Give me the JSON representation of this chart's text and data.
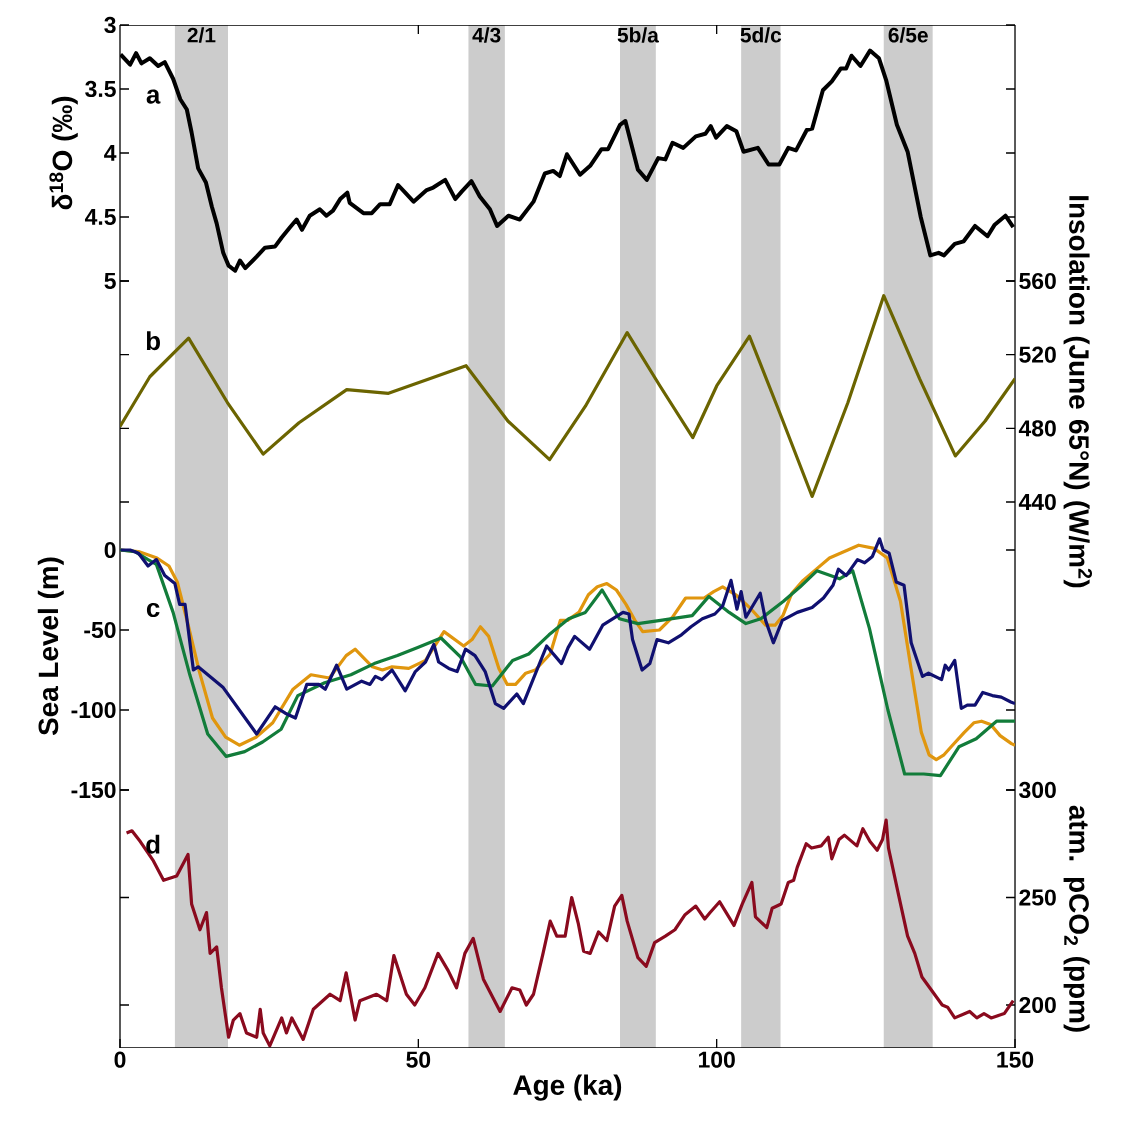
{
  "chart_data": [
    {
      "type": "line",
      "ylabel": "δ$^{18}$O (‰)",
      "xlim": [
        0,
        150
      ],
      "xticks": [
        {
          "value": 50,
          "label": null
        },
        {
          "value": 100,
          "label": null
        }
      ],
      "ylim": [
        5,
        3
      ],
      "yticks": [
        3,
        3.5,
        4,
        4.5,
        5
      ],
      "tick_labels": "y",
      "annotations": [
        "a"
      ],
      "bands": [
        {
          "axis": "x",
          "from": 9.2,
          "to": 18.1,
          "label": "2/1",
          "color": "#cccccc"
        },
        {
          "axis": "x",
          "from": 58.4,
          "to": 64.5,
          "label": "4/3",
          "color": "#cccccc"
        },
        {
          "axis": "x",
          "from": 83.8,
          "to": 89.8,
          "label": "5b/a",
          "color": "#cccccc"
        },
        {
          "axis": "x",
          "from": 104.1,
          "to": 110.7,
          "label": "5d/c",
          "color": "#cccccc"
        },
        {
          "axis": "x",
          "from": 128.0,
          "to": 136.2,
          "label": "6/5e",
          "color": "#cccccc"
        }
      ],
      "series": [
        {
          "color": "#000000",
          "x": [
            0.1,
            1.7,
            2.7,
            3.6,
            5.0,
            6.4,
            7.5,
            8.9,
            10.1,
            11.2,
            12.0,
            13.1,
            14.4,
            15.4,
            16.2,
            17.3,
            18.2,
            19.3,
            20.1,
            21.0,
            22.9,
            24.3,
            26.0,
            27.1,
            28.5,
            29.6,
            30.5,
            31.8,
            33.5,
            34.6,
            35.7,
            36.9,
            38.1,
            38.5,
            40.8,
            42.2,
            43.6,
            45.2,
            46.6,
            47.8,
            49.2,
            51.4,
            52.5,
            54.5,
            56.2,
            57.3,
            58.9,
            60.3,
            62.0,
            63.2,
            65.1,
            67.0,
            69.3,
            71.2,
            72.6,
            73.7,
            74.9,
            77.1,
            78.8,
            80.7,
            81.8,
            83.8,
            84.7,
            86.8,
            88.3,
            90.2,
            91.4,
            92.6,
            94.4,
            96.5,
            98.1,
            99.0,
            99.9,
            101.7,
            103.3,
            104.5,
            106.9,
            108.7,
            110.5,
            112.0,
            113.3,
            115.1,
            116.0,
            117.8,
            119.3,
            120.8,
            121.7,
            122.6,
            124.1,
            125.7,
            127.2,
            128.4,
            130.2,
            132.0,
            134.2,
            135.8,
            137.2,
            138.1,
            139.9,
            141.4,
            143.3,
            145.4,
            146.6,
            148.4,
            149.7
          ],
          "values": [
            3.23,
            3.31,
            3.22,
            3.3,
            3.26,
            3.32,
            3.29,
            3.42,
            3.58,
            3.66,
            3.84,
            4.12,
            4.23,
            4.42,
            4.55,
            4.78,
            4.88,
            4.92,
            4.84,
            4.9,
            4.81,
            4.74,
            4.73,
            4.66,
            4.58,
            4.52,
            4.6,
            4.49,
            4.44,
            4.49,
            4.45,
            4.36,
            4.31,
            4.39,
            4.47,
            4.47,
            4.4,
            4.4,
            4.25,
            4.31,
            4.38,
            4.29,
            4.27,
            4.21,
            4.36,
            4.3,
            4.22,
            4.34,
            4.44,
            4.57,
            4.49,
            4.52,
            4.38,
            4.16,
            4.14,
            4.18,
            4.01,
            4.17,
            4.1,
            3.97,
            3.97,
            3.78,
            3.75,
            4.13,
            4.21,
            4.04,
            4.05,
            3.92,
            3.96,
            3.87,
            3.85,
            3.79,
            3.88,
            3.79,
            3.83,
            3.99,
            3.96,
            4.09,
            4.09,
            3.96,
            3.98,
            3.82,
            3.81,
            3.51,
            3.44,
            3.34,
            3.34,
            3.24,
            3.32,
            3.2,
            3.26,
            3.43,
            3.78,
            3.99,
            4.5,
            4.8,
            4.78,
            4.8,
            4.71,
            4.69,
            4.57,
            4.65,
            4.56,
            4.49,
            4.58
          ]
        }
      ]
    },
    {
      "type": "line",
      "y2label": "Insolation (June 65°N) (W/m$^{2}$)",
      "xlim": [
        0,
        150
      ],
      "y2lim": [
        440,
        560
      ],
      "y2ticks": [
        440,
        480,
        520,
        560
      ],
      "tick_labels": "y",
      "annotations": [
        "b"
      ],
      "bands": [
        {
          "axis": "x",
          "from": 9.2,
          "to": 18.1,
          "color": "#cccccc"
        },
        {
          "axis": "x",
          "from": 58.4,
          "to": 64.5,
          "color": "#cccccc"
        },
        {
          "axis": "x",
          "from": 83.8,
          "to": 89.8,
          "color": "#cccccc"
        },
        {
          "axis": "x",
          "from": 104.1,
          "to": 110.7,
          "color": "#cccccc"
        },
        {
          "axis": "x",
          "from": 128.0,
          "to": 136.2,
          "color": "#cccccc"
        }
      ],
      "series": [
        {
          "color": "#6b6400",
          "axis": "y2",
          "x": [
            0,
            5,
            11.5,
            18,
            24,
            30,
            38,
            45,
            52,
            58,
            65,
            72,
            78,
            85,
            90.5,
            96,
            100,
            105.5,
            110.5,
            116,
            122,
            128,
            134,
            140,
            145,
            150
          ],
          "values": [
            481,
            508,
            529,
            494,
            466,
            483,
            501,
            499,
            507,
            514,
            484,
            463,
            492,
            532,
            503,
            475,
            503,
            530,
            489,
            443,
            494,
            552,
            507,
            465,
            484,
            507
          ]
        }
      ]
    },
    {
      "type": "line",
      "ylabel": "Sea Level (m)",
      "xlim": [
        0,
        150
      ],
      "ylim": [
        -150,
        30
      ],
      "yticks": [
        -150,
        -100,
        -50,
        0
      ],
      "tick_labels": "y",
      "annotations": [
        "c"
      ],
      "bands": [
        {
          "axis": "x",
          "from": 9.2,
          "to": 18.1,
          "color": "#cccccc"
        },
        {
          "axis": "x",
          "from": 58.4,
          "to": 64.5,
          "color": "#cccccc"
        },
        {
          "axis": "x",
          "from": 83.8,
          "to": 89.8,
          "color": "#cccccc"
        },
        {
          "axis": "x",
          "from": 104.1,
          "to": 110.7,
          "color": "#cccccc"
        },
        {
          "axis": "x",
          "from": 128.0,
          "to": 136.2,
          "color": "#cccccc"
        }
      ],
      "series": [
        {
          "color": "#e0960e",
          "x": [
            0,
            3.1,
            6.2,
            8.2,
            9.6,
            11.3,
            13.3,
            15.5,
            17.7,
            20.0,
            22.8,
            25.6,
            29.0,
            32.0,
            35.1,
            37.9,
            39.4,
            42.3,
            44.0,
            45.6,
            48.4,
            51.2,
            54.3,
            57.6,
            59.0,
            60.4,
            61.8,
            63.5,
            64.9,
            66.3,
            68.0,
            69.6,
            72.1,
            73.8,
            75.0,
            76.9,
            78.5,
            80.0,
            81.6,
            83.2,
            84.8,
            86.3,
            87.6,
            90.4,
            92.6,
            94.8,
            96.0,
            97.9,
            99.5,
            101.0,
            103.2,
            105.8,
            108.2,
            109.8,
            111.1,
            112.6,
            114.5,
            117.0,
            118.9,
            121.4,
            123.8,
            126.4,
            128.6,
            130.8,
            132.4,
            134.3,
            135.6,
            136.8,
            138.1,
            139.3,
            141.5,
            143.1,
            144.4,
            145.9,
            147.5,
            149.4,
            150
          ],
          "values": [
            0,
            -1,
            -5,
            -10,
            -20,
            -45,
            -76,
            -105,
            -117,
            -122,
            -117,
            -108,
            -87,
            -78,
            -80,
            -66,
            -62,
            -73,
            -75,
            -73,
            -74,
            -69,
            -51,
            -60,
            -56,
            -48,
            -54,
            -74,
            -84,
            -84,
            -77,
            -75,
            -65,
            -44,
            -44,
            -39,
            -28,
            -23,
            -21,
            -25,
            -34,
            -44,
            -51,
            -50,
            -42,
            -30,
            -30,
            -30,
            -26,
            -23,
            -28,
            -37,
            -47,
            -47,
            -41,
            -27,
            -19,
            -11,
            -5,
            -1,
            3,
            1,
            -5,
            -32,
            -70,
            -114,
            -128,
            -131,
            -128,
            -123,
            -114,
            -108,
            -107,
            -109,
            -116,
            -121,
            -122
          ]
        },
        {
          "color": "#127c3a",
          "x": [
            0,
            2.5,
            4.7,
            6.1,
            8.9,
            11.7,
            14.7,
            17.8,
            20.9,
            23.9,
            27.0,
            29.8,
            34.3,
            38.7,
            42.6,
            46.5,
            49.9,
            53.8,
            57.1,
            59.6,
            62.4,
            65.8,
            68.5,
            71.9,
            75.2,
            78.0,
            80.8,
            83.7,
            86.8,
            90.6,
            95.9,
            98.7,
            102.1,
            104.9,
            107.4,
            111.2,
            114.0,
            116.8,
            120.6,
            122.8,
            125.6,
            128.7,
            131.5,
            134.7,
            137.5,
            140.6,
            143.5,
            146.9,
            149.4,
            150
          ],
          "values": [
            0,
            -1,
            -6,
            -9,
            -39,
            -78,
            -115,
            -129,
            -126,
            -120,
            -112,
            -91,
            -83,
            -78,
            -71,
            -66,
            -61,
            -55,
            -67,
            -84,
            -85,
            -69,
            -65,
            -53,
            -43,
            -39,
            -25,
            -43,
            -46,
            -44,
            -41,
            -29,
            -39,
            -46,
            -43,
            -32,
            -23,
            -13,
            -18,
            -13,
            -49,
            -100,
            -140,
            -140,
            -141,
            -123,
            -118,
            -107,
            -107,
            -107
          ]
        },
        {
          "color": "#101070",
          "x": [
            0.1,
            1.7,
            3.1,
            4.7,
            6.1,
            7.5,
            9.2,
            10.0,
            10.9,
            12.3,
            13.1,
            17.3,
            22.9,
            26.0,
            27.7,
            29.4,
            31.3,
            33.3,
            34.4,
            36.3,
            38.0,
            40.5,
            41.9,
            42.8,
            43.9,
            45.6,
            47.8,
            49.5,
            51.2,
            52.6,
            53.4,
            55.1,
            56.5,
            57.9,
            59.5,
            61.2,
            62.9,
            64.3,
            66.5,
            67.6,
            69.0,
            71.5,
            74.0,
            75.1,
            76.2,
            78.7,
            80.9,
            84.3,
            85.3,
            85.9,
            87.5,
            88.8,
            90.0,
            91.9,
            94.1,
            95.7,
            97.6,
            99.7,
            101.0,
            102.4,
            103.4,
            104.1,
            104.9,
            107.3,
            108.2,
            109.5,
            111.0,
            113.5,
            116.0,
            117.9,
            119.5,
            120.4,
            121.7,
            123.6,
            124.8,
            126.1,
            127.3,
            127.9,
            128.9,
            130.1,
            131.4,
            132.6,
            134.5,
            135.5,
            137.7,
            138.3,
            138.9,
            139.9,
            141.0,
            142.0,
            143.3,
            144.6,
            146.2,
            147.7,
            149.3,
            150
          ],
          "values": [
            0,
            0,
            -2,
            -10,
            -6,
            -16,
            -21,
            -34,
            -34,
            -75,
            -73,
            -86,
            -115,
            -98,
            -102,
            -105,
            -84,
            -84,
            -87,
            -72,
            -87,
            -82,
            -84,
            -79,
            -81,
            -75,
            -88,
            -76,
            -70,
            -59,
            -70,
            -74,
            -76,
            -62,
            -66,
            -76,
            -96,
            -99,
            -90,
            -96,
            -83,
            -60,
            -71,
            -61,
            -54,
            -62,
            -47,
            -39,
            -40,
            -56,
            -75,
            -71,
            -56,
            -58,
            -53,
            -48,
            -43,
            -40,
            -35,
            -19,
            -37,
            -26,
            -42,
            -27,
            -44,
            -58,
            -44,
            -39,
            -36,
            -30,
            -22,
            -12,
            -16,
            -6,
            -8,
            -4,
            7,
            0,
            -2,
            -20,
            -22,
            -58,
            -79,
            -77,
            -81,
            -72,
            -75,
            -69,
            -99,
            -97,
            -97,
            -89,
            -91,
            -92,
            -95,
            -96
          ]
        }
      ]
    },
    {
      "type": "line",
      "xlabel": "Age (ka)",
      "y2label": "atm. pCO$_{2}$ (ppm)",
      "xlim": [
        0,
        150
      ],
      "xticks": [
        0,
        50,
        100,
        150
      ],
      "y2lim": [
        180,
        300
      ],
      "y2ticks": [
        200,
        250,
        300
      ],
      "annotations": [
        "d"
      ],
      "bands": [
        {
          "axis": "x",
          "from": 9.2,
          "to": 18.1,
          "color": "#cccccc"
        },
        {
          "axis": "x",
          "from": 58.4,
          "to": 64.5,
          "color": "#cccccc"
        },
        {
          "axis": "x",
          "from": 83.8,
          "to": 89.8,
          "color": "#cccccc"
        },
        {
          "axis": "x",
          "from": 104.1,
          "to": 110.7,
          "color": "#cccccc"
        },
        {
          "axis": "x",
          "from": 128.0,
          "to": 136.2,
          "color": "#cccccc"
        }
      ],
      "series": [
        {
          "color": "#8a0a1e",
          "axis": "y2",
          "x": [
            1.1,
            2.0,
            3.4,
            5.6,
            7.3,
            9.5,
            11.4,
            12.0,
            13.4,
            14.5,
            15.1,
            16.2,
            17.0,
            18.2,
            19.0,
            20.1,
            21.2,
            22.9,
            23.5,
            24.0,
            25.1,
            27.1,
            27.9,
            28.8,
            30.7,
            32.4,
            35.2,
            36.9,
            37.9,
            39.4,
            40.2,
            43.0,
            44.7,
            45.9,
            48.0,
            49.4,
            51.1,
            53.3,
            55.0,
            56.4,
            57.8,
            59.2,
            60.9,
            63.7,
            65.7,
            67.0,
            68.1,
            69.3,
            70.9,
            72.1,
            73.2,
            74.6,
            75.7,
            76.8,
            77.7,
            78.8,
            80.2,
            81.6,
            82.9,
            84.1,
            85.0,
            86.8,
            88.2,
            89.6,
            91.4,
            93.0,
            94.7,
            96.5,
            98.0,
            98.9,
            100.5,
            102.9,
            104.3,
            105.9,
            106.5,
            108.4,
            109.3,
            110.8,
            112.0,
            112.9,
            113.5,
            115.0,
            115.9,
            117.5,
            118.7,
            119.3,
            120.5,
            121.4,
            123.5,
            124.5,
            125.7,
            126.9,
            127.8,
            128.4,
            128.8,
            130.5,
            132.0,
            133.2,
            134.4,
            137.8,
            138.7,
            139.9,
            142.4,
            143.6,
            144.8,
            146.0,
            148.2,
            149.7
          ],
          "values": [
            280,
            281,
            276,
            267,
            258,
            260,
            270,
            247,
            235,
            243,
            224,
            227,
            208,
            185,
            193,
            196,
            187,
            185,
            198,
            187,
            181,
            194,
            187,
            194,
            184,
            198,
            205,
            202,
            215,
            193,
            202,
            205,
            202,
            223,
            205,
            200,
            208,
            224,
            216,
            208,
            224,
            231,
            212,
            197,
            208,
            207,
            200,
            205,
            224,
            239,
            232,
            232,
            250,
            238,
            225,
            224,
            234,
            230,
            246,
            251,
            239,
            222,
            218,
            229,
            232,
            235,
            242,
            246,
            240,
            243,
            248,
            237,
            247,
            257,
            241,
            236,
            245,
            247,
            257,
            258,
            264,
            275,
            273,
            274,
            278,
            268,
            277,
            279,
            274,
            282,
            276,
            272,
            277,
            286,
            273,
            251,
            232,
            224,
            213,
            200,
            199,
            194,
            197,
            194,
            196,
            194,
            196,
            202
          ]
        }
      ]
    }
  ]
}
